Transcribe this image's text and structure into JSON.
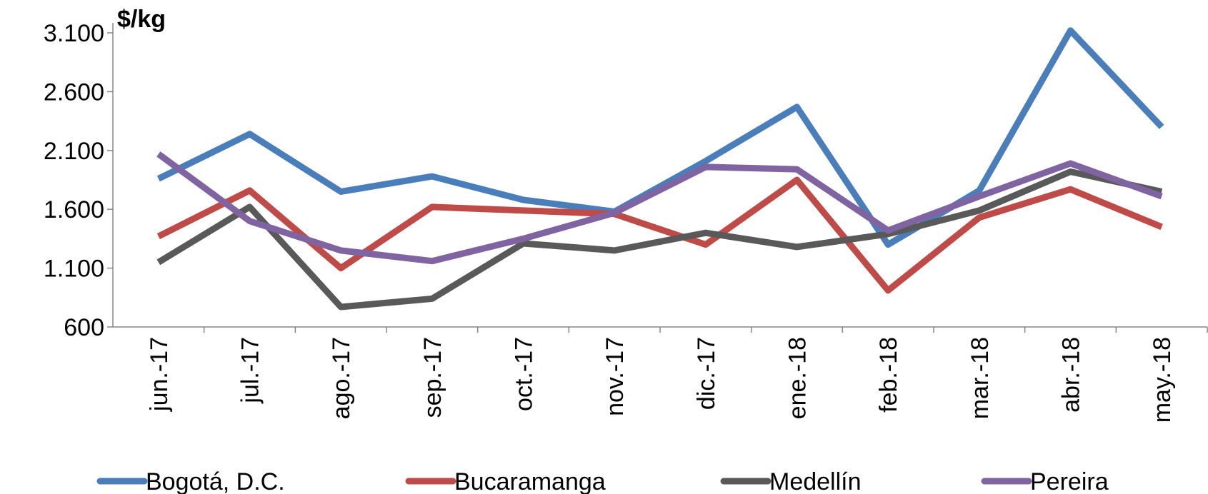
{
  "chart_data": {
    "type": "line",
    "y_label": "$/kg",
    "categories": [
      "jun.-17",
      "jul.-17",
      "ago.-17",
      "sep.-17",
      "oct.-17",
      "nov.-17",
      "dic.-17",
      "ene.-18",
      "feb.-18",
      "mar.-18",
      "abr.-18",
      "may.-18"
    ],
    "series": [
      {
        "name": "Bogotá, D.C.",
        "color": "#4a7ebb",
        "values": [
          1860,
          2240,
          1750,
          1880,
          1680,
          1580,
          2010,
          2470,
          1300,
          1760,
          3120,
          2300
        ]
      },
      {
        "name": "Bucaramanga",
        "color": "#be4b48",
        "values": [
          1370,
          1760,
          1100,
          1620,
          1590,
          1560,
          1300,
          1850,
          910,
          1530,
          1770,
          1450
        ]
      },
      {
        "name": "Medellín",
        "color": "#595959",
        "values": [
          1150,
          1620,
          770,
          840,
          1310,
          1250,
          1400,
          1280,
          1390,
          1590,
          1920,
          1750
        ]
      },
      {
        "name": "Pereira",
        "color": "#8064a2",
        "values": [
          2070,
          1500,
          1250,
          1160,
          1350,
          1570,
          1960,
          1940,
          1420,
          1710,
          1990,
          1710
        ]
      }
    ],
    "ylim": [
      600,
      3100
    ],
    "yticks": [
      600,
      {
        "value": 1100,
        "label": "1.100"
      },
      {
        "value": 1600,
        "label": "1.600"
      },
      {
        "value": 2100,
        "label": "2.100"
      },
      {
        "value": 2600,
        "label": "2.600"
      },
      {
        "value": 3100,
        "label": "3.100"
      }
    ],
    "legend": "bottom"
  }
}
